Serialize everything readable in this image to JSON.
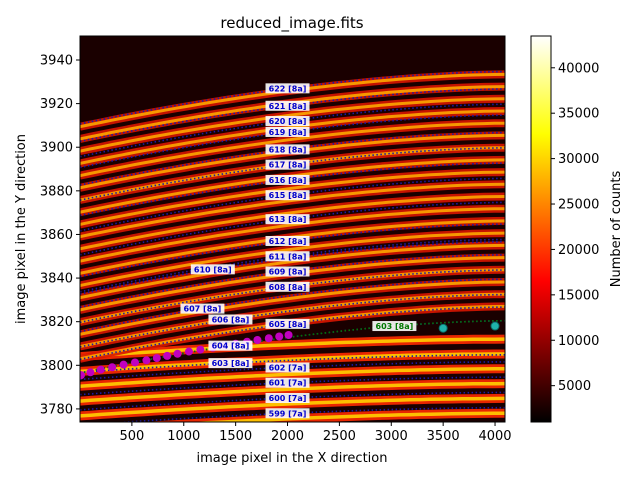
{
  "chart_data": {
    "type": "heatmap",
    "title": "reduced_image.fits",
    "xlabel": "image pixel in the X direction",
    "ylabel": "image pixel in the Y direction",
    "xlim": [
      0,
      4096
    ],
    "ylim": [
      3774,
      3951
    ],
    "xticks": [
      500,
      1000,
      1500,
      2000,
      2500,
      3000,
      3500,
      4000
    ],
    "yticks": [
      3780,
      3800,
      3820,
      3840,
      3860,
      3880,
      3900,
      3920,
      3940
    ],
    "grid": false,
    "colorbar": {
      "label": "Number of counts",
      "cmap": "hot",
      "range": [
        1000,
        43500
      ],
      "ticks": [
        5000,
        10000,
        15000,
        20000,
        25000,
        30000,
        35000,
        40000
      ]
    },
    "orders": [
      {
        "label": "622  [8a]",
        "x": 2000,
        "y": 3927,
        "color": "#0000cc"
      },
      {
        "label": "621  [8a]",
        "x": 2000,
        "y": 3919,
        "color": "#0000cc"
      },
      {
        "label": "620  [8a]",
        "x": 2000,
        "y": 3912,
        "color": "#0000cc"
      },
      {
        "label": "619  [8a]",
        "x": 2000,
        "y": 3907,
        "color": "#0000cc"
      },
      {
        "label": "618  [8a]",
        "x": 2000,
        "y": 3899,
        "color": "#0000cc"
      },
      {
        "label": "617  [8a]",
        "x": 2000,
        "y": 3892,
        "color": "#0000cc"
      },
      {
        "label": "616  [8a]",
        "x": 2000,
        "y": 3885,
        "color": "#0000cc"
      },
      {
        "label": "615  [8a]",
        "x": 2000,
        "y": 3878,
        "color": "#0000cc"
      },
      {
        "label": "613  [8a]",
        "x": 2000,
        "y": 3867,
        "color": "#0000cc"
      },
      {
        "label": "612  [8a]",
        "x": 2000,
        "y": 3857,
        "color": "#0000cc"
      },
      {
        "label": "611  [8a]",
        "x": 2000,
        "y": 3850,
        "color": "#0000cc"
      },
      {
        "label": "610  [8a]",
        "x": 1280,
        "y": 3844,
        "color": "#0000cc"
      },
      {
        "label": "609  [8a]",
        "x": 2000,
        "y": 3843,
        "color": "#0000cc"
      },
      {
        "label": "608  [8a]",
        "x": 2000,
        "y": 3836,
        "color": "#0000cc"
      },
      {
        "label": "607  [8a]",
        "x": 1180,
        "y": 3826,
        "color": "#0000cc"
      },
      {
        "label": "606  [8a]",
        "x": 1450,
        "y": 3821,
        "color": "#0000cc"
      },
      {
        "label": "605  [8a]",
        "x": 2000,
        "y": 3819,
        "color": "#0000cc"
      },
      {
        "label": "604  [8a]",
        "x": 1450,
        "y": 3809,
        "color": "#0000cc"
      },
      {
        "label": "603  [8a]",
        "x": 1450,
        "y": 3801,
        "color": "#0000cc"
      },
      {
        "label": "603  [8a]",
        "x": 3030,
        "y": 3818,
        "color": "#007700"
      },
      {
        "label": "602  [7a]",
        "x": 2000,
        "y": 3799,
        "color": "#0000cc"
      },
      {
        "label": "601  [7a]",
        "x": 2000,
        "y": 3792,
        "color": "#0000cc"
      },
      {
        "label": "600  [7a]",
        "x": 2000,
        "y": 3785,
        "color": "#0000cc"
      },
      {
        "label": "599  [7a]",
        "x": 2000,
        "y": 3778,
        "color": "#0000cc"
      }
    ],
    "magenta_points": {
      "x": [
        10,
        100,
        200,
        310,
        420,
        530,
        640,
        740,
        840,
        940,
        1050,
        1160,
        1280,
        1390,
        1500,
        1610,
        1710,
        1820,
        1920,
        2010
      ],
      "y": [
        3795.5,
        3796.8,
        3798.0,
        3799.1,
        3800.3,
        3801.3,
        3802.3,
        3803.3,
        3804.3,
        3805.3,
        3806.3,
        3807.2,
        3808.1,
        3809.0,
        3809.9,
        3810.8,
        3811.6,
        3812.4,
        3813.2,
        3813.9
      ],
      "color": "#c000c0"
    },
    "teal_points": {
      "x": [
        3500,
        4000
      ],
      "y": [
        3817.0,
        3818.0
      ],
      "color": "#20b2aa"
    }
  }
}
